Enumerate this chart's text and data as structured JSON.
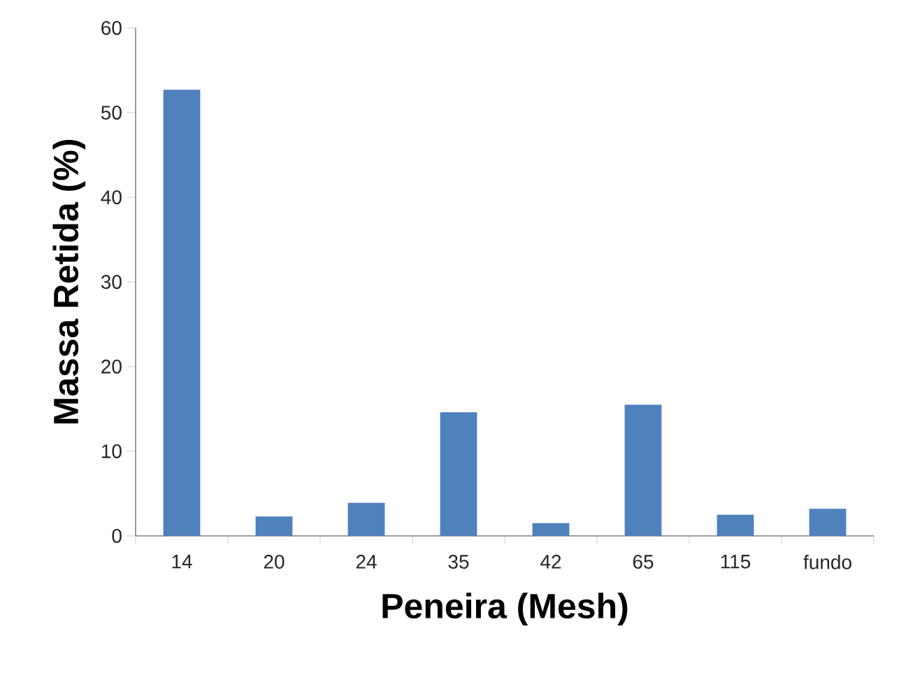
{
  "chart_data": {
    "type": "bar",
    "xlabel": "Peneira (Mesh)",
    "ylabel": "Massa Retida (%)",
    "categories": [
      "14",
      "20",
      "24",
      "35",
      "42",
      "65",
      "115",
      "fundo"
    ],
    "values": [
      52.7,
      2.3,
      3.9,
      14.6,
      1.5,
      15.5,
      2.5,
      3.2
    ],
    "color": "#4f81bd",
    "ylim": [
      0,
      60
    ],
    "yticks": [
      0,
      10,
      20,
      30,
      40,
      50,
      60
    ]
  }
}
